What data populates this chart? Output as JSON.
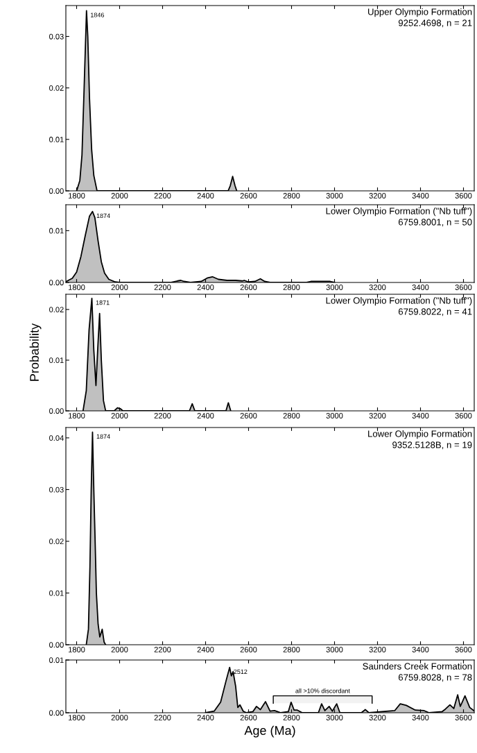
{
  "chart_data": [
    {
      "type": "area",
      "title": "Upper Olympio Formation",
      "subtitle": "9252.4698, n = 21",
      "xlim": [
        1750,
        3650
      ],
      "xticks": [
        1800,
        2000,
        2200,
        2400,
        2600,
        2800,
        3000,
        3200,
        3400,
        3600
      ],
      "ylim": [
        0,
        0.036
      ],
      "yticks": [
        {
          "value": 0,
          "label": "0.00"
        },
        {
          "value": 0.01,
          "label": "0.01"
        },
        {
          "value": 0.02,
          "label": "0.02"
        },
        {
          "value": 0.03,
          "label": "0.03"
        }
      ],
      "series": [
        {
          "color": "#c0c0c0",
          "x": [
            1800,
            1815,
            1825,
            1835,
            1846,
            1852,
            1860,
            1870,
            1880,
            1895,
            2505,
            2515,
            2526,
            2537,
            2545
          ],
          "values": [
            0,
            0.002,
            0.007,
            0.02,
            0.035,
            0.03,
            0.018,
            0.008,
            0.003,
            0,
            0,
            0.001,
            0.0028,
            0.001,
            0
          ]
        }
      ],
      "annotations": [
        {
          "text": "1846",
          "x": 1846,
          "y": 0.035
        }
      ]
    },
    {
      "type": "area",
      "title": "Lower Olympio Formation (\"Nb tuff\")",
      "subtitle": "6759.8001, n = 50",
      "xlim": [
        1750,
        3650
      ],
      "xticks": [
        1800,
        2000,
        2200,
        2400,
        2600,
        2800,
        3000,
        3200,
        3400,
        3600
      ],
      "ylim": [
        0,
        0.015
      ],
      "yticks": [
        {
          "value": 0,
          "label": "0.00"
        },
        {
          "value": 0.01,
          "label": "0.01"
        }
      ],
      "series": [
        {
          "color": "#c0c0c0",
          "x": [
            1752,
            1780,
            1800,
            1820,
            1840,
            1860,
            1874,
            1885,
            1900,
            1915,
            1930,
            1950,
            1980,
            2000,
            2240,
            2270,
            2285,
            2300,
            2330,
            2380,
            2410,
            2432,
            2460,
            2500,
            2540,
            2570,
            2580,
            2600,
            2630,
            2655,
            2675,
            2700,
            2870,
            2890,
            2980,
            3000
          ],
          "values": [
            0.0002,
            0.0008,
            0.002,
            0.005,
            0.009,
            0.0128,
            0.0137,
            0.0125,
            0.008,
            0.004,
            0.0018,
            0.0006,
            0.0001,
            0,
            0,
            0.0003,
            0.0004,
            0.0002,
            0,
            0.0002,
            0.0009,
            0.0011,
            0.0006,
            0.0004,
            0.0004,
            0.0003,
            0.0004,
            0.0001,
            0.0002,
            0.0007,
            0.0002,
            0,
            0,
            0.0002,
            0.0002,
            0
          ]
        }
      ],
      "annotations": [
        {
          "text": "1874",
          "x": 1874,
          "y": 0.0137
        }
      ]
    },
    {
      "type": "area",
      "title": "Lower Olympio Formation (\"Nb tuff\")",
      "subtitle": "6759.8022, n = 41",
      "ylabel": "Probability",
      "xlim": [
        1750,
        3650
      ],
      "xticks": [
        1800,
        2000,
        2200,
        2400,
        2600,
        2800,
        3000,
        3200,
        3400,
        3600
      ],
      "ylim": [
        0,
        0.023
      ],
      "yticks": [
        {
          "value": 0,
          "label": "0.00"
        },
        {
          "value": 0.01,
          "label": "0.01"
        },
        {
          "value": 0.02,
          "label": "0.02"
        }
      ],
      "series": [
        {
          "color": "#c0c0c0",
          "x": [
            1830,
            1845,
            1858,
            1871,
            1880,
            1890,
            1898,
            1907,
            1915,
            1925,
            1935,
            1975,
            1990,
            2005,
            2015,
            2325,
            2338,
            2350,
            2495,
            2506,
            2517
          ],
          "values": [
            0,
            0.004,
            0.016,
            0.0222,
            0.012,
            0.005,
            0.012,
            0.0192,
            0.01,
            0.002,
            0,
            0,
            0.0006,
            0.0004,
            0,
            0,
            0.0014,
            0,
            0,
            0.0016,
            0
          ]
        }
      ],
      "annotations": [
        {
          "text": "1871",
          "x": 1871,
          "y": 0.0222
        }
      ]
    },
    {
      "type": "area",
      "title": "Lower Olympio Formation",
      "subtitle": "9352.5128B, n = 19",
      "xlim": [
        1750,
        3650
      ],
      "xticks": [
        1800,
        2000,
        2200,
        2400,
        2600,
        2800,
        3000,
        3200,
        3400,
        3600
      ],
      "ylim": [
        0,
        0.042
      ],
      "yticks": [
        {
          "value": 0,
          "label": "0.00"
        },
        {
          "value": 0.01,
          "label": "0.01"
        },
        {
          "value": 0.02,
          "label": "0.02"
        },
        {
          "value": 0.03,
          "label": "0.03"
        },
        {
          "value": 0.04,
          "label": "0.04"
        }
      ],
      "series": [
        {
          "color": "#c0c0c0",
          "x": [
            1845,
            1855,
            1862,
            1868,
            1874,
            1880,
            1885,
            1892,
            1900,
            1908,
            1919,
            1928,
            1935
          ],
          "values": [
            0,
            0.003,
            0.015,
            0.03,
            0.0411,
            0.03,
            0.022,
            0.01,
            0.004,
            0.0015,
            0.003,
            0.0005,
            0
          ]
        }
      ],
      "annotations": [
        {
          "text": "1874",
          "x": 1874,
          "y": 0.0411
        }
      ]
    },
    {
      "type": "area",
      "title": "Saunders Creek Formation",
      "subtitle": "6759.8028, n = 78",
      "xlabel": "Age (Ma)",
      "xlim": [
        1750,
        3650
      ],
      "xticks": [
        1800,
        2000,
        2200,
        2400,
        2600,
        2800,
        3000,
        3200,
        3400,
        3600
      ],
      "ylim": [
        0,
        0.01
      ],
      "yticks": [
        {
          "value": 0,
          "label": "0.00"
        },
        {
          "value": 0.01,
          "label": "0.01"
        }
      ],
      "series": [
        {
          "color": "#c0c0c0",
          "x": [
            2400,
            2440,
            2470,
            2495,
            2512,
            2520,
            2528,
            2540,
            2550,
            2560,
            2575,
            2590,
            2620,
            2637,
            2655,
            2679,
            2700,
            2721,
            2750,
            2785,
            2798,
            2812,
            2827,
            2850,
            2925,
            2940,
            2955,
            2975,
            2990,
            3010,
            3025,
            3125,
            3143,
            3160,
            3280,
            3306,
            3334,
            3376,
            3417,
            3440,
            3500,
            3516,
            3537,
            3555,
            3573,
            3585,
            3594,
            3607,
            3629,
            3648
          ],
          "values": [
            0,
            0.0003,
            0.002,
            0.006,
            0.0086,
            0.007,
            0.0078,
            0.005,
            0.001,
            0.0015,
            0.0003,
            0,
            0.0002,
            0.0012,
            0.0006,
            0.0021,
            0.0003,
            0.0004,
            0,
            0.0002,
            0.002,
            0.0005,
            0.0005,
            0,
            0,
            0.0017,
            0.0004,
            0.0012,
            0.0003,
            0.0017,
            0,
            0,
            0.0006,
            0,
            0.0004,
            0.0017,
            0.0014,
            0.0005,
            0.0004,
            0,
            0.0002,
            0.0007,
            0.0015,
            0.0008,
            0.0034,
            0.0012,
            0.002,
            0.0032,
            0.001,
            0.0004
          ]
        }
      ],
      "annotations": [
        {
          "text": "2512",
          "x": 2512,
          "y": 0.0086
        }
      ],
      "bands": [
        {
          "axis": "x",
          "from": 2715,
          "to": 3175,
          "label": "all >10% discordant"
        }
      ]
    }
  ]
}
